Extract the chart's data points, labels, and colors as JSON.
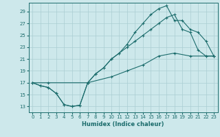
{
  "xlabel": "Humidex (Indice chaleur)",
  "background_color": "#cde8eb",
  "grid_color": "#aacdd2",
  "line_color": "#1a6b6b",
  "xlim": [
    -0.5,
    23.5
  ],
  "ylim": [
    12.0,
    30.5
  ],
  "xticks": [
    0,
    1,
    2,
    3,
    4,
    5,
    6,
    7,
    8,
    9,
    10,
    11,
    12,
    13,
    14,
    15,
    16,
    17,
    18,
    19,
    20,
    21,
    22,
    23
  ],
  "yticks": [
    13,
    15,
    17,
    19,
    21,
    23,
    25,
    27,
    29
  ],
  "line_peak_x": [
    0,
    1,
    2,
    3,
    4,
    5,
    6,
    7,
    8,
    9,
    10,
    11,
    12,
    13,
    14,
    15,
    16,
    17,
    18,
    19,
    20,
    21,
    22,
    23
  ],
  "line_peak_y": [
    17,
    16.5,
    16.2,
    15.2,
    13.3,
    13.0,
    13.2,
    17.0,
    18.5,
    19.5,
    21.0,
    22.0,
    23.5,
    25.5,
    27.0,
    28.5,
    29.5,
    30.0,
    27.5,
    27.5,
    26.0,
    25.5,
    24.0,
    21.5
  ],
  "line_mid_x": [
    0,
    1,
    2,
    3,
    4,
    5,
    6,
    7,
    8,
    9,
    10,
    11,
    12,
    13,
    14,
    15,
    16,
    17,
    18,
    19,
    20,
    21,
    22,
    23
  ],
  "line_mid_y": [
    17,
    16.5,
    16.2,
    15.2,
    13.3,
    13.0,
    13.2,
    17.0,
    18.5,
    19.5,
    21.0,
    22.0,
    23.0,
    24.0,
    25.0,
    26.0,
    27.0,
    28.0,
    28.5,
    26.0,
    25.5,
    22.5,
    21.5,
    21.5
  ],
  "line_low_x": [
    0,
    2,
    7,
    10,
    12,
    14,
    16,
    18,
    20,
    22,
    23
  ],
  "line_low_y": [
    17,
    17,
    17,
    18,
    19,
    20,
    21.5,
    22,
    21.5,
    21.5,
    21.5
  ]
}
